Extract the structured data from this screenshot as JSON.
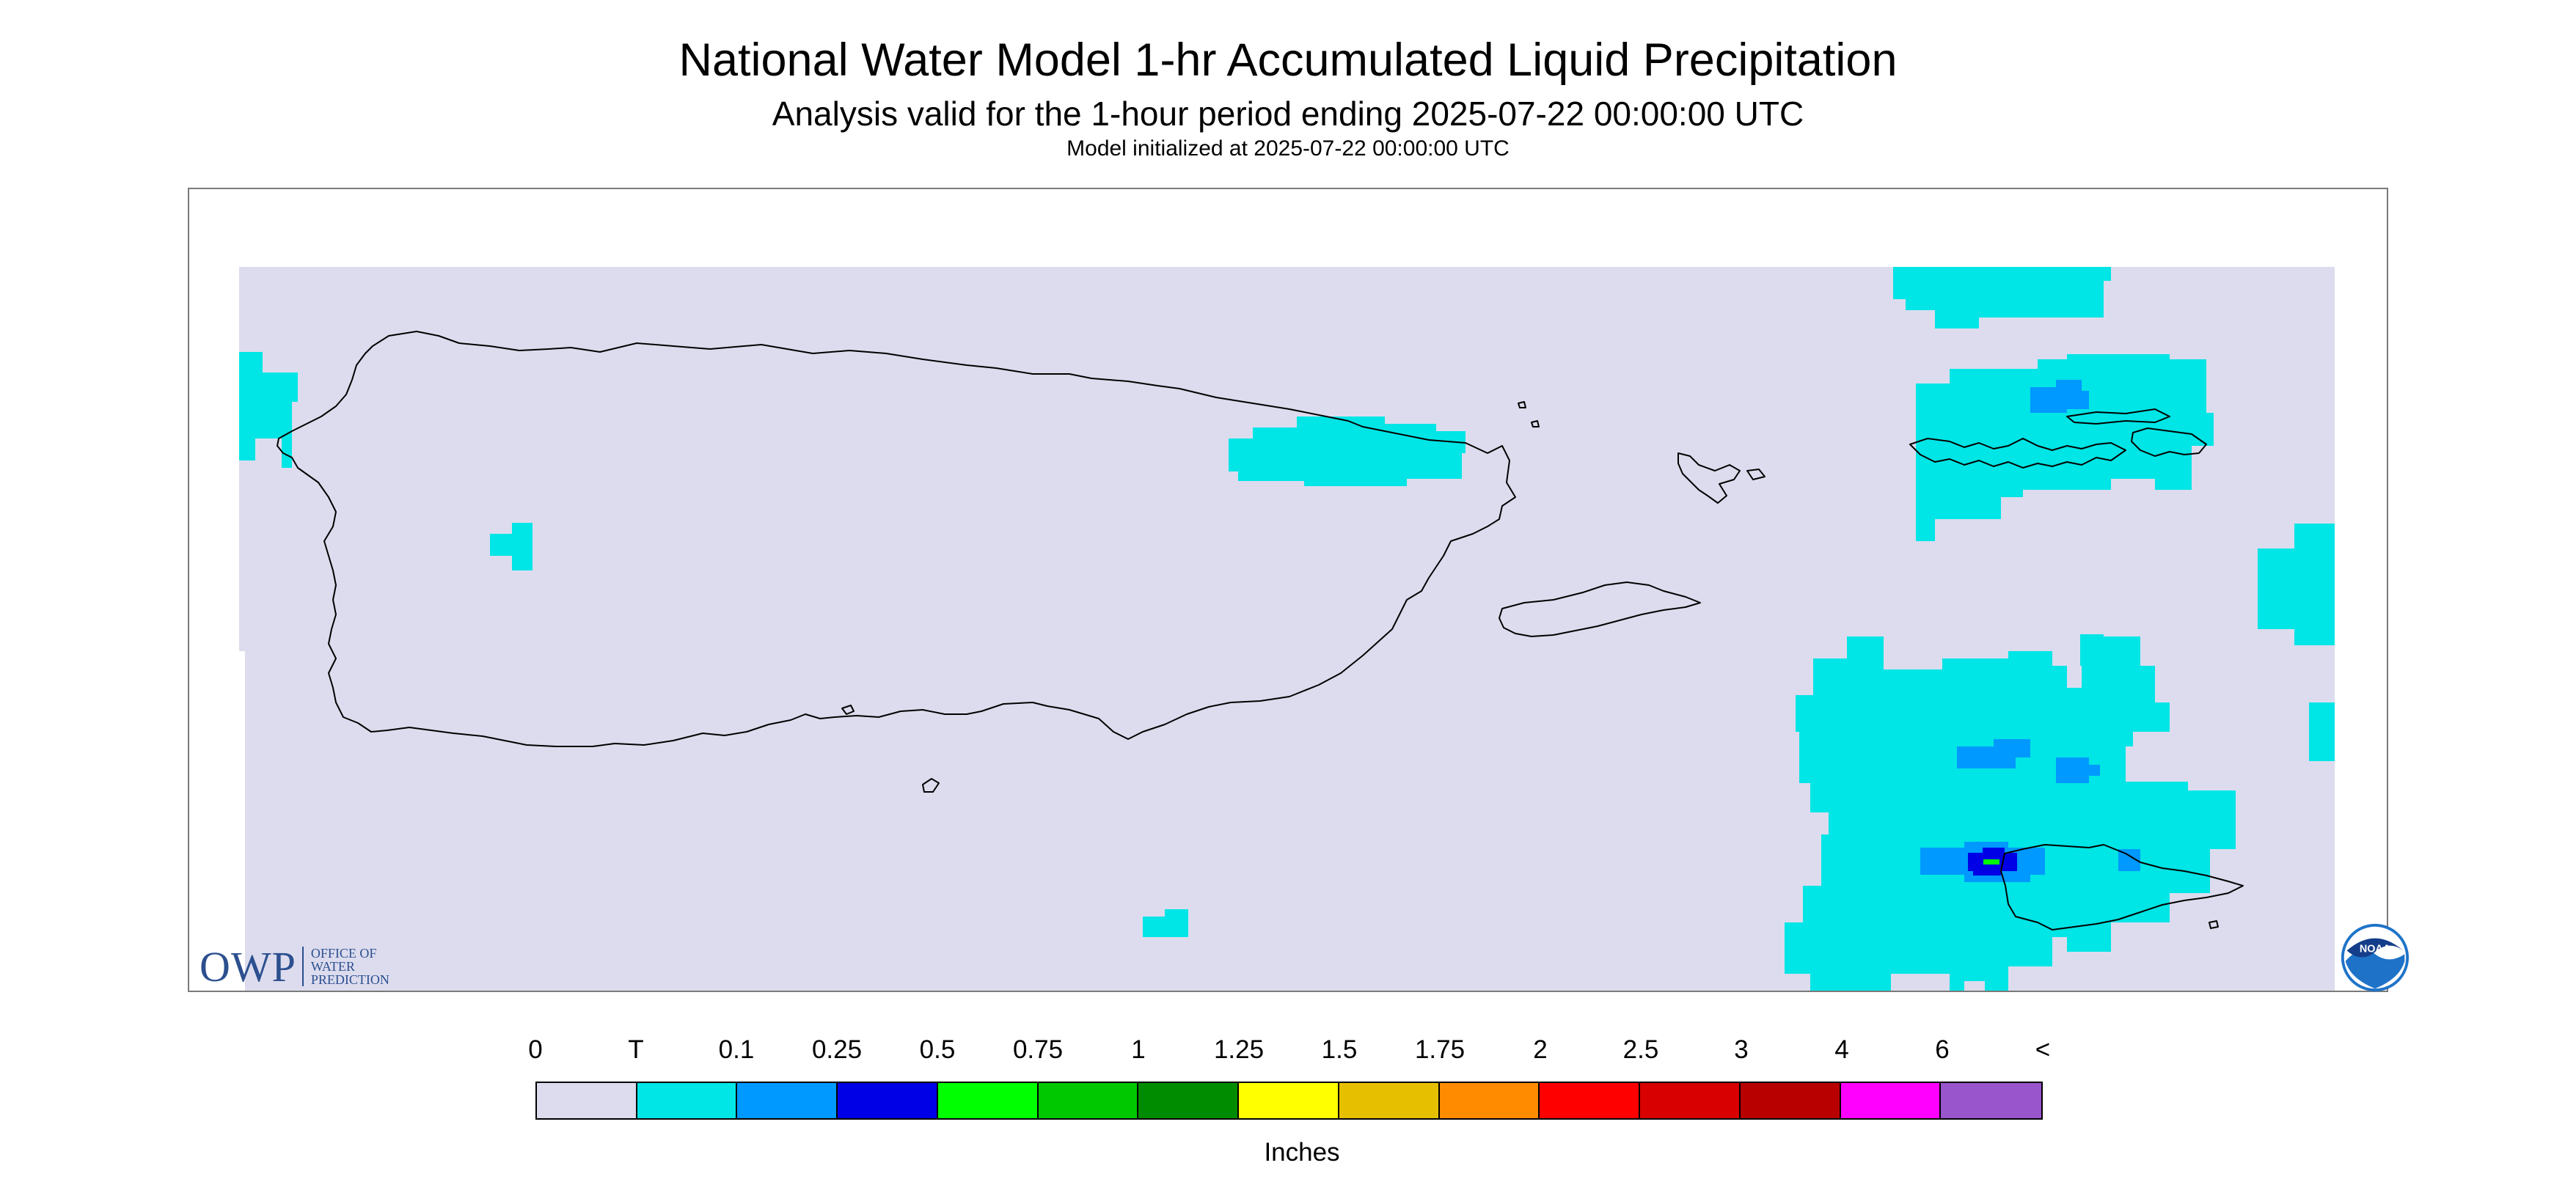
{
  "header": {
    "title": "National Water Model 1-hr Accumulated Liquid Precipitation",
    "subtitle": "Analysis valid for the 1-hour period ending 2025-07-22 00:00:00 UTC",
    "init_line": "Model initialized at 2025-07-22 00:00:00 UTC"
  },
  "map": {
    "background_color": "#dcdcee",
    "coastline_color": "#000000",
    "features": [
      {
        "kind": "island",
        "name": "puerto-rico"
      },
      {
        "kind": "island",
        "name": "vieques"
      },
      {
        "kind": "island",
        "name": "culebra"
      },
      {
        "kind": "island",
        "name": "st-thomas-st-john"
      },
      {
        "kind": "island",
        "name": "st-croix"
      },
      {
        "kind": "island",
        "name": "desecheo"
      }
    ]
  },
  "logos": {
    "owp": {
      "big": "OWP",
      "lines": [
        "OFFICE OF",
        "WATER",
        "PREDICTION"
      ]
    },
    "noaa": {
      "text": "NOAA",
      "icon": "noaa-logo-icon"
    }
  },
  "legend": {
    "tick_labels": [
      "0",
      "T",
      "0.1",
      "0.25",
      "0.5",
      "0.75",
      "1",
      "1.25",
      "1.5",
      "1.75",
      "2",
      "2.5",
      "3",
      "4",
      "6",
      "<"
    ],
    "colors": [
      "#dcdcee",
      "#00e5e5",
      "#0099ff",
      "#0000e6",
      "#00ff00",
      "#00c800",
      "#008c00",
      "#ffff00",
      "#e6c000",
      "#ff8c00",
      "#ff0000",
      "#d80000",
      "#b80000",
      "#ff00ff",
      "#9955cc"
    ],
    "units": "Inches"
  }
}
